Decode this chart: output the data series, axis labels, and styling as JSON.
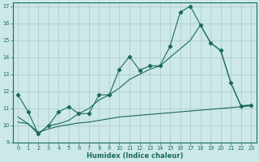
{
  "bg_color": "#cce8e8",
  "grid_color": "#b0cccc",
  "line_color": "#1a6b5a",
  "xlabel": "Humidex (Indice chaleur)",
  "xlim": [
    -0.5,
    23.5
  ],
  "ylim": [
    9,
    17.2
  ],
  "yticks": [
    9,
    10,
    11,
    12,
    13,
    14,
    15,
    16,
    17
  ],
  "xticks": [
    0,
    1,
    2,
    3,
    4,
    5,
    6,
    7,
    8,
    9,
    10,
    11,
    12,
    13,
    14,
    15,
    16,
    17,
    18,
    19,
    20,
    21,
    22,
    23
  ],
  "line1_x": [
    0,
    1,
    2,
    3,
    4,
    5,
    6,
    7,
    8,
    9,
    10,
    11,
    12,
    13,
    14,
    15,
    16,
    17,
    18,
    19,
    20,
    21,
    22,
    23
  ],
  "line1_y": [
    11.8,
    10.8,
    9.5,
    10.0,
    10.8,
    11.1,
    10.7,
    10.7,
    11.8,
    11.8,
    13.3,
    14.05,
    13.25,
    13.5,
    13.5,
    14.65,
    16.65,
    17.0,
    15.9,
    14.85,
    14.4,
    12.5,
    11.15,
    11.2
  ],
  "line2_x": [
    0,
    1,
    2,
    3,
    4,
    5,
    6,
    7,
    8,
    9,
    10,
    11,
    12,
    13,
    14,
    15,
    16,
    17,
    18,
    19,
    20,
    21,
    22,
    23
  ],
  "line2_y": [
    10.5,
    10.1,
    9.5,
    10.0,
    10.1,
    10.3,
    10.7,
    11.0,
    11.5,
    11.8,
    12.2,
    12.7,
    13.0,
    13.3,
    13.5,
    14.0,
    14.5,
    15.0,
    15.9,
    14.85,
    14.4,
    12.5,
    11.15,
    11.2
  ],
  "line3_x": [
    0,
    1,
    2,
    3,
    4,
    5,
    6,
    7,
    8,
    9,
    10,
    11,
    12,
    13,
    14,
    15,
    16,
    17,
    18,
    19,
    20,
    21,
    22,
    23
  ],
  "line3_y": [
    10.2,
    10.1,
    9.6,
    9.8,
    9.95,
    10.05,
    10.15,
    10.2,
    10.3,
    10.4,
    10.5,
    10.55,
    10.6,
    10.65,
    10.7,
    10.75,
    10.8,
    10.85,
    10.9,
    10.95,
    11.0,
    11.05,
    11.1,
    11.15
  ]
}
